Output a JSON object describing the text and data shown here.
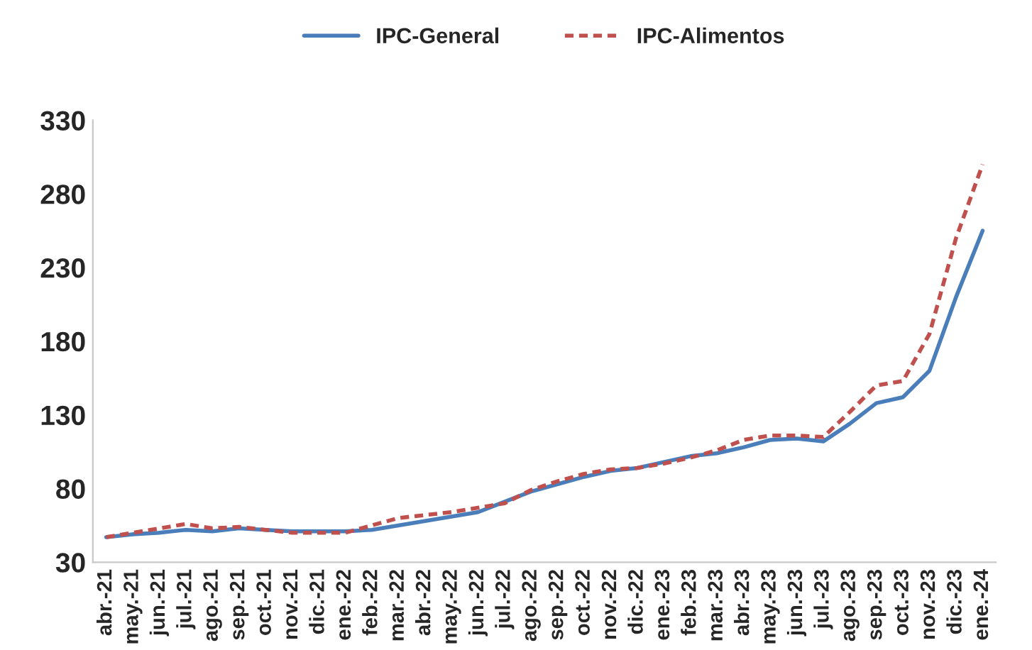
{
  "chart_data": {
    "type": "line",
    "categories": [
      "abr.-21",
      "may.-21",
      "jun.-21",
      "jul.-21",
      "ago.-21",
      "sep.-21",
      "oct.-21",
      "nov.-21",
      "dic.-21",
      "ene.-22",
      "feb.-22",
      "mar.-22",
      "abr.-22",
      "may.-22",
      "jun.-22",
      "jul.-22",
      "ago.-22",
      "sep.-22",
      "oct.-22",
      "nov.-22",
      "dic.-22",
      "ene.-23",
      "feb.-23",
      "mar.-23",
      "abr.-23",
      "may.-23",
      "jun.-23",
      "jul.-23",
      "ago.-23",
      "sep.-23",
      "oct.-23",
      "nov.-23",
      "dic.-23",
      "ene.-24"
    ],
    "series": [
      {
        "name": "IPC-General",
        "color": "#4a7ebb",
        "line_style": "solid",
        "values": [
          47,
          49,
          50,
          52,
          51,
          53,
          52,
          51,
          51,
          51,
          52,
          55,
          58,
          61,
          64,
          71,
          78,
          83,
          88,
          92,
          94,
          98,
          102,
          104,
          108,
          113,
          114,
          112,
          124,
          138,
          142,
          160,
          210,
          255
        ]
      },
      {
        "name": "IPC-Alimentos",
        "color": "#c0504d",
        "line_style": "dashed",
        "values": [
          47,
          50,
          53,
          56,
          53,
          54,
          52,
          50,
          50,
          50,
          55,
          60,
          62,
          64,
          67,
          70,
          79,
          85,
          90,
          93,
          94,
          97,
          101,
          106,
          113,
          116,
          116,
          115,
          132,
          150,
          153,
          185,
          250,
          300
        ]
      }
    ],
    "ylim": [
      30,
      330
    ],
    "yticks": [
      30,
      80,
      130,
      180,
      230,
      280,
      330
    ],
    "grid": false,
    "legend": "top",
    "marker": "none"
  }
}
